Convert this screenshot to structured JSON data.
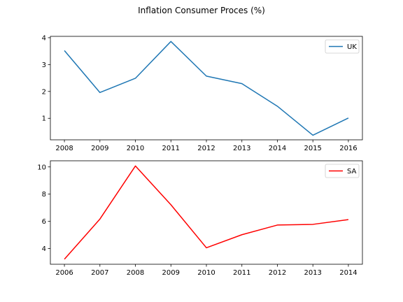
{
  "figure": {
    "title": "Inflation Consumer Proces (%)"
  },
  "chart_data": [
    {
      "type": "line",
      "title": "",
      "xlabel": "",
      "ylabel": "",
      "x": [
        2008,
        2009,
        2010,
        2011,
        2012,
        2013,
        2014,
        2015,
        2016
      ],
      "xticks": [
        "2008",
        "2009",
        "2010",
        "2011",
        "2012",
        "2013",
        "2014",
        "2015",
        "2016"
      ],
      "yticks": [
        "1",
        "2",
        "3",
        "4"
      ],
      "ylim": [
        0.2,
        4.05
      ],
      "series": [
        {
          "name": "UK",
          "color": "#1f77b4",
          "values": [
            3.52,
            1.96,
            2.49,
            3.86,
            2.57,
            2.29,
            1.45,
            0.37,
            1.01
          ]
        }
      ],
      "legend": "top-right",
      "grid": false
    },
    {
      "type": "line",
      "title": "",
      "xlabel": "",
      "ylabel": "",
      "x": [
        2006,
        2007,
        2008,
        2009,
        2010,
        2011,
        2012,
        2013,
        2014
      ],
      "xticks": [
        "2006",
        "2007",
        "2008",
        "2009",
        "2010",
        "2011",
        "2012",
        "2013",
        "2014"
      ],
      "yticks": [
        "4",
        "6",
        "8",
        "10"
      ],
      "ylim": [
        2.85,
        10.45
      ],
      "series": [
        {
          "name": "SA",
          "color": "#ff0000",
          "values": [
            3.22,
            6.17,
            10.07,
            7.22,
            4.06,
            5.02,
            5.73,
            5.78,
            6.13
          ]
        }
      ],
      "legend": "top-right",
      "grid": false
    }
  ]
}
